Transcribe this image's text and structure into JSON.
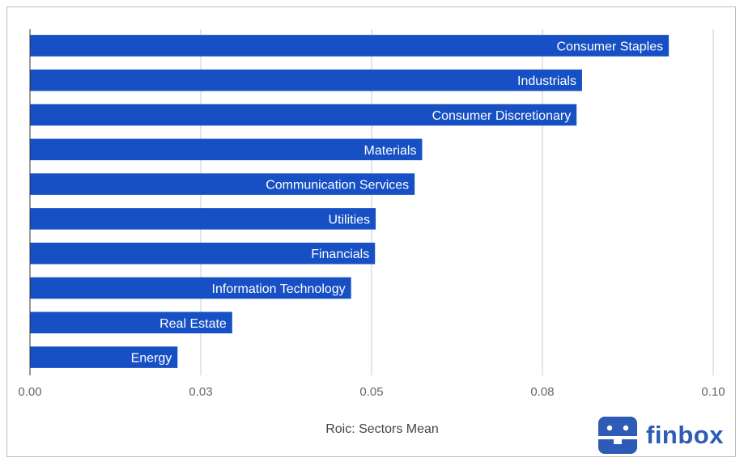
{
  "chart_data": {
    "type": "bar",
    "orientation": "horizontal",
    "categories": [
      "Consumer Staples",
      "Industrials",
      "Consumer Discretionary",
      "Materials",
      "Communication Services",
      "Utilities",
      "Financials",
      "Information Technology",
      "Real Estate",
      "Energy"
    ],
    "values": [
      0.0935,
      0.0808,
      0.08,
      0.0574,
      0.0563,
      0.0506,
      0.0505,
      0.047,
      0.0296,
      0.0216
    ],
    "xlabel": "Roic: Sectors Mean",
    "ylabel": "",
    "xlim": [
      0,
      0.1
    ],
    "x_ticks": [
      0,
      0.025,
      0.05,
      0.075,
      0.1
    ],
    "x_tick_labels": [
      "0.00",
      "0.03",
      "0.05",
      "0.08",
      "0.10"
    ],
    "grid": true,
    "legend": "none",
    "bar_color": "#1650c4",
    "label_color": "#ffffff"
  },
  "brand": {
    "name": "finbox",
    "color": "#2d5bb5"
  }
}
